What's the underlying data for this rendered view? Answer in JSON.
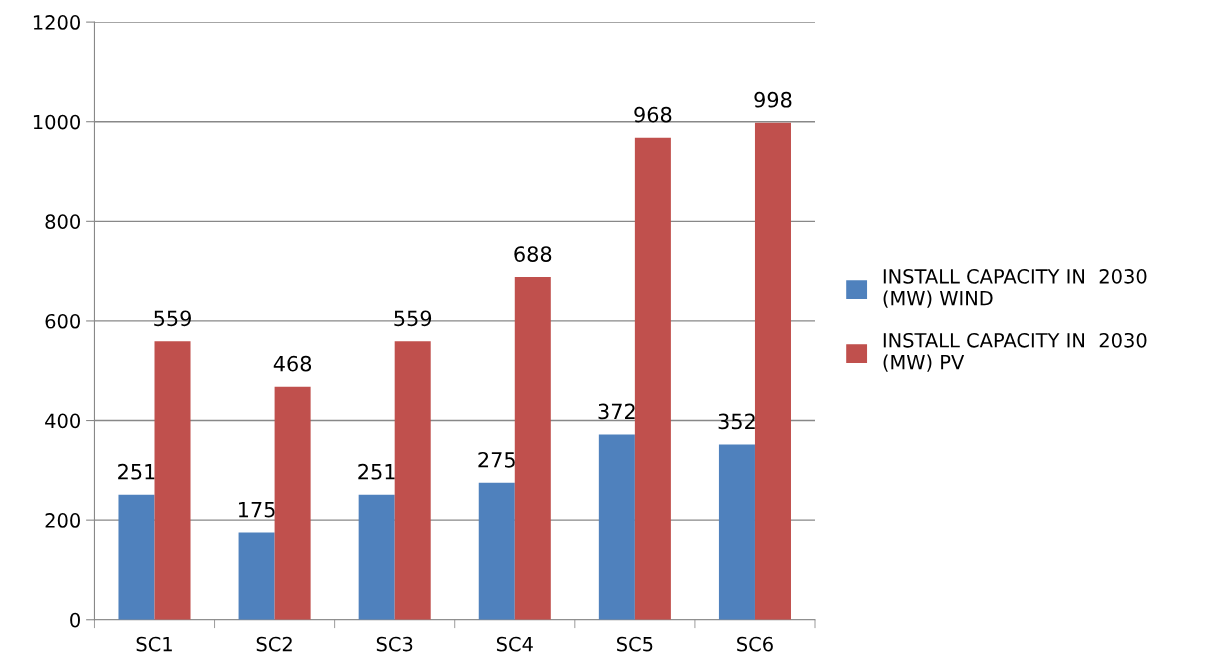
{
  "chart_data": {
    "type": "bar",
    "categories": [
      "SC1",
      "SC2",
      "SC3",
      "SC4",
      "SC5",
      "SC6"
    ],
    "series": [
      {
        "name": "INSTALL CAPACITY IN  2030\n(MW) WIND",
        "color": "#4f81bd",
        "values": [
          251,
          175,
          251,
          275,
          372,
          352
        ]
      },
      {
        "name": "INSTALL CAPACITY IN  2030\n(MW) PV",
        "color": "#c0504d",
        "values": [
          559,
          468,
          559,
          688,
          968,
          998
        ]
      }
    ],
    "ylim": [
      0,
      1200
    ],
    "yticks": [
      0,
      200,
      400,
      600,
      800,
      1000,
      1200
    ],
    "grid": "y",
    "legend": "right",
    "data_labels": true
  }
}
